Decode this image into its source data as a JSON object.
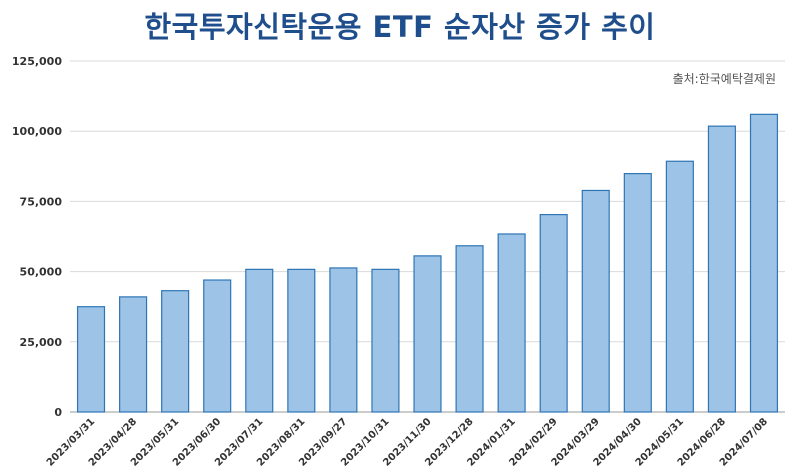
{
  "title": "한국투자신탁운용 ETF 순자산 증가 추이",
  "source": "출처:한국예탁결제원",
  "chart_data": {
    "type": "bar",
    "title": "한국투자신탁운용 ETF 순자산 증가 추이",
    "xlabel": "",
    "ylabel": "",
    "ylim": [
      0,
      125000
    ],
    "yticks": [
      "0",
      "25,000",
      "50,000",
      "75,000",
      "100,000",
      "125,000"
    ],
    "ytick_values": [
      0,
      25000,
      50000,
      75000,
      100000,
      125000
    ],
    "grid": true,
    "categories": [
      "2023/03/31",
      "2023/04/28",
      "2023/05/31",
      "2023/06/30",
      "2023/07/31",
      "2023/08/31",
      "2023/09/27",
      "2023/10/31",
      "2023/11/30",
      "2023/12/28",
      "2024/01/31",
      "2024/02/29",
      "2024/03/29",
      "2024/04/30",
      "2024/05/31",
      "2024/06/28",
      "2024/07/08"
    ],
    "values": [
      37500,
      41000,
      43200,
      47000,
      50800,
      50800,
      51300,
      50800,
      55600,
      59200,
      63400,
      70300,
      78900,
      84900,
      89300,
      101800,
      106000
    ],
    "bar_color": "#9dc3e6",
    "bar_border": "#2e75b6"
  }
}
